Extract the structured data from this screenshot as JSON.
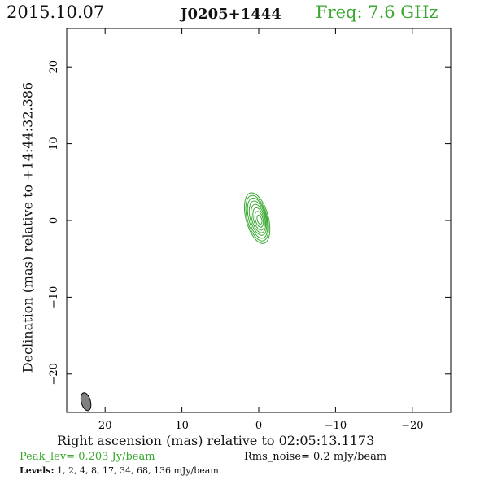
{
  "header": {
    "date": "2015.10.07",
    "source": "J0205+1444",
    "frequency": "Freq: 7.6 GHz"
  },
  "footer": {
    "peak_level": "Peak_lev=  0.203 Jy/beam",
    "rms_noise": "Rms_noise=  0.2 mJy/beam",
    "levels_label": "Levels:",
    "levels_values": "1,   2,   4,   8,  17,  34,  68, 136 mJy/beam"
  },
  "chart_data": {
    "type": "contour",
    "title": "J0205+1444",
    "xlabel": "Right ascension (mas) relative to 02:05:13.1173",
    "ylabel": "Declination (mas) relative to +14:44:32.386",
    "xlim": [
      25,
      -25
    ],
    "ylim": [
      -25,
      25
    ],
    "xticks": [
      20,
      10,
      0,
      -10,
      -20
    ],
    "xtick_labels": [
      "20",
      "10",
      "0",
      "−10",
      "−20"
    ],
    "yticks": [
      20,
      10,
      0,
      -10,
      -20
    ],
    "ytick_labels": [
      "20",
      "10",
      "0",
      "−10",
      "−20"
    ],
    "grid": false,
    "contour_color": "#3aa830",
    "beam_color": "#808080",
    "contour_levels_mjy": [
      1,
      2,
      4,
      8,
      17,
      34,
      68,
      136
    ],
    "peak_jy_per_beam": 0.203,
    "rms_mjy_per_beam": 0.2,
    "contours": [
      {
        "level": 1,
        "cx": 0.2,
        "cy": 0.3,
        "rx": 1.45,
        "ry": 3.4,
        "angle": -15
      },
      {
        "level": 2,
        "cx": 0.2,
        "cy": 0.3,
        "rx": 1.3,
        "ry": 3.05,
        "angle": -15
      },
      {
        "level": 4,
        "cx": 0.15,
        "cy": 0.3,
        "rx": 1.15,
        "ry": 2.7,
        "angle": -15
      },
      {
        "level": 8,
        "cx": 0.1,
        "cy": 0.3,
        "rx": 1.0,
        "ry": 2.3,
        "angle": -15
      },
      {
        "level": 17,
        "cx": 0.05,
        "cy": 0.25,
        "rx": 0.85,
        "ry": 1.9,
        "angle": -15
      },
      {
        "level": 34,
        "cx": 0.0,
        "cy": 0.2,
        "rx": 0.68,
        "ry": 1.5,
        "angle": -15
      },
      {
        "level": 68,
        "cx": -0.05,
        "cy": 0.15,
        "rx": 0.5,
        "ry": 1.05,
        "angle": -15
      },
      {
        "level": 136,
        "cx": -0.1,
        "cy": 0.1,
        "rx": 0.3,
        "ry": 0.6,
        "angle": -15
      }
    ],
    "beam": {
      "cx": 22.5,
      "cy": -23.6,
      "major": 2.4,
      "minor": 1.2,
      "angle": -15
    }
  }
}
